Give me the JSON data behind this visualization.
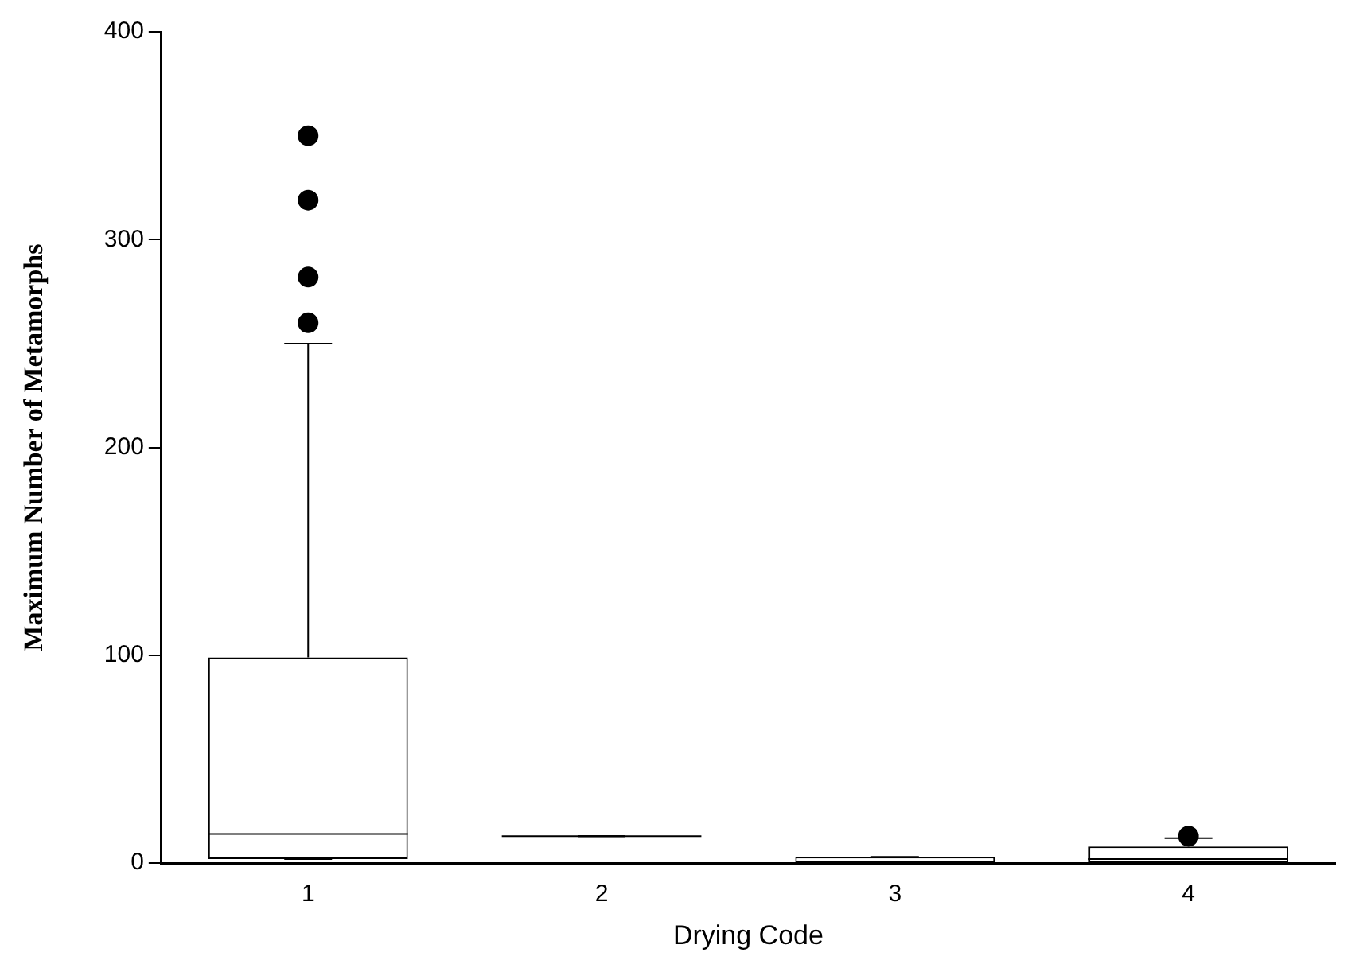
{
  "chart_data": {
    "type": "box",
    "xlabel": "Drying Code",
    "ylabel": "Maximum Number of Metamorphs",
    "categories": [
      "1",
      "2",
      "3",
      "4"
    ],
    "boxes": [
      {
        "low": 2,
        "q1": 2,
        "median": 14,
        "q3": 99,
        "high": 250,
        "outliers": [
          260,
          282,
          319,
          350
        ]
      },
      {
        "low": 13,
        "q1": 13,
        "median": 13,
        "q3": 13,
        "high": 13
      },
      {
        "low": 0,
        "q1": 0,
        "median": 0,
        "q3": 3,
        "high": 3
      },
      {
        "low": 0,
        "q1": 0,
        "median": 2,
        "q3": 8,
        "high": 12,
        "outliers": [
          13
        ]
      }
    ],
    "color": "#000000",
    "ylim": [
      0,
      400
    ],
    "yticks": [
      0,
      100,
      200,
      300,
      400
    ],
    "grid": false,
    "legend": false,
    "marker": "circle"
  }
}
